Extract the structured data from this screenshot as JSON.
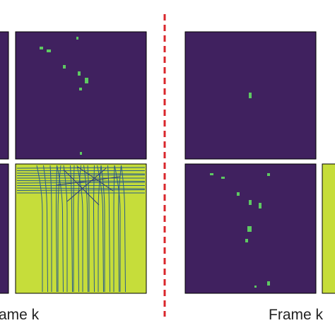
{
  "captions": {
    "left": "ame k",
    "right": "Frame k"
  }
}
